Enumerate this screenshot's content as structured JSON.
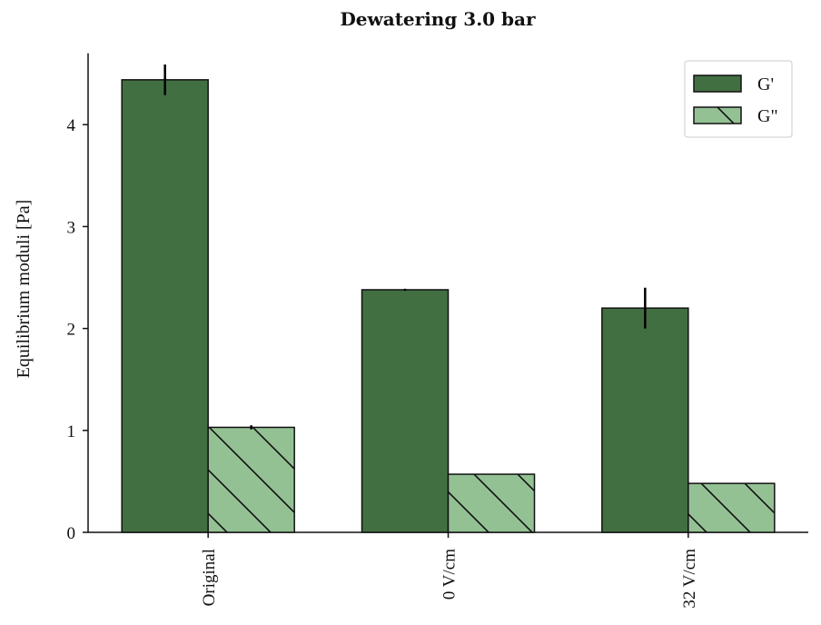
{
  "chart_data": {
    "type": "bar",
    "title": "Dewatering 3.0 bar",
    "xlabel": "",
    "ylabel": "Equilibrium moduli [Pa]",
    "categories": [
      "Original",
      "0 V/cm",
      "32 V/cm"
    ],
    "ylim": [
      0,
      4.7
    ],
    "yticks": [
      0,
      1,
      2,
      3,
      4
    ],
    "legend_position": "top-right",
    "grid": false,
    "series": [
      {
        "name": "G'",
        "values": [
          4.44,
          2.38,
          2.2
        ],
        "errors": [
          0.15,
          0.01,
          0.2
        ],
        "color": "#426f42",
        "hatch": false
      },
      {
        "name": "G\"",
        "values": [
          1.03,
          0.57,
          0.48
        ],
        "errors": [
          0.02,
          0,
          0
        ],
        "color": "#94c194",
        "hatch": true
      }
    ]
  }
}
